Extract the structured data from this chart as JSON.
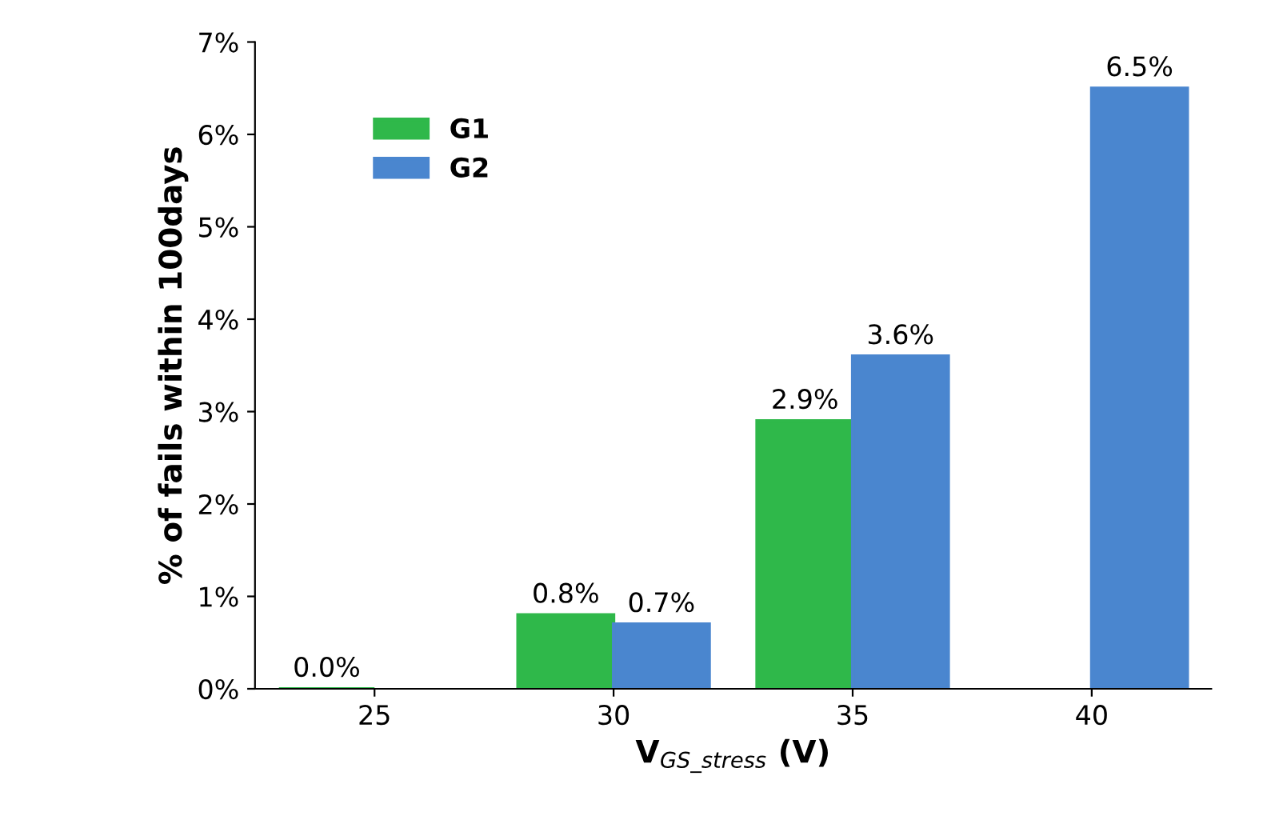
{
  "chart_data": {
    "type": "bar",
    "xlabel": "V$_{GS_stress}$ (V)",
    "ylabel": "% of fails within 100days",
    "categories": [
      "25",
      "30",
      "35",
      "40"
    ],
    "series": [
      {
        "name": "G1",
        "color": "#2fb84a",
        "values": [
          0,
          0.8,
          2.9,
          null
        ],
        "value_labels": [
          "0.0%",
          "0.8%",
          "2.9%",
          null
        ]
      },
      {
        "name": "G2",
        "color": "#4a86cf",
        "values": [
          null,
          0.7,
          3.6,
          6.5
        ],
        "value_labels": [
          null,
          "0.7%",
          "3.6%",
          "6.5%"
        ]
      }
    ],
    "ylim": [
      0,
      7
    ],
    "yticks": [
      {
        "value": 0,
        "label": "0%"
      },
      {
        "value": 1,
        "label": "1%"
      },
      {
        "value": 2,
        "label": "2%"
      },
      {
        "value": 3,
        "label": "3%"
      },
      {
        "value": 4,
        "label": "4%"
      },
      {
        "value": 5,
        "label": "5%"
      },
      {
        "value": 6,
        "label": "6%"
      },
      {
        "value": 7,
        "label": "7%"
      }
    ],
    "grid": false,
    "legend": "top left"
  }
}
